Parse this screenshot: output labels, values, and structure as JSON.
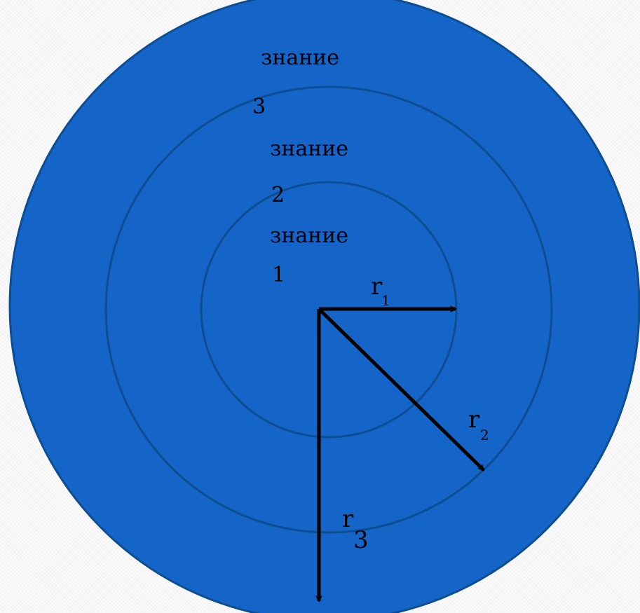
{
  "diagram": {
    "colors": {
      "fill": "#1565C8",
      "ring_stroke": "#0D4E92",
      "arrow": "#000000"
    },
    "rings": [
      {
        "label_word": "знание",
        "label_index": "1"
      },
      {
        "label_word": "знание",
        "label_index": "2"
      },
      {
        "label_word": "знание",
        "label_index": "3"
      }
    ],
    "radii": [
      {
        "letter": "r",
        "index": "1"
      },
      {
        "letter": "r",
        "index": "2"
      },
      {
        "letter": "r",
        "index": "3"
      }
    ]
  }
}
